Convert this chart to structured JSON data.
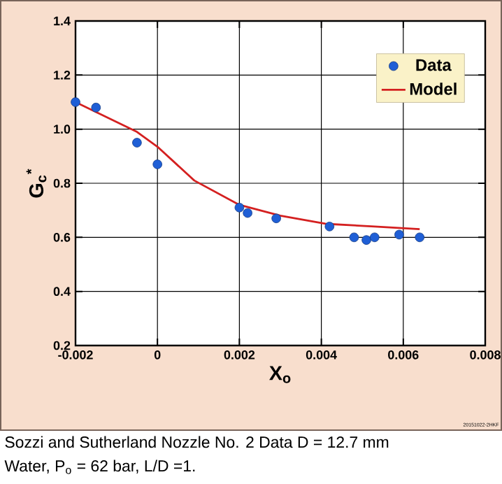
{
  "chart_data": {
    "type": "scatter",
    "xlabel": "X$_{o}$",
    "ylabel": "G$_{c}$$^{*}$",
    "xlim": [
      -0.002,
      0.008
    ],
    "ylim": [
      0.2,
      1.4
    ],
    "xticks": [
      -0.002,
      0,
      0.002,
      0.004,
      0.006,
      0.008
    ],
    "yticks": [
      0.2,
      0.4,
      0.6,
      0.8,
      {
        "value": 1.0,
        "label": "1.0"
      },
      1.2,
      1.4
    ],
    "grid": true,
    "legend": "top right",
    "series": [
      {
        "name": "Data",
        "marker": "circle",
        "color": "#1f5fd6",
        "x": [
          -0.002,
          -0.0015,
          -0.0005,
          0,
          0.002,
          0.0022,
          0.0029,
          0.0042,
          0.0048,
          0.0051,
          0.0053,
          0.0059,
          0.0064
        ],
        "values": [
          1.1,
          1.08,
          0.95,
          0.87,
          0.71,
          0.69,
          0.67,
          0.64,
          0.6,
          0.59,
          0.6,
          0.61,
          0.6
        ]
      },
      {
        "name": "Model",
        "type": "line",
        "marker": "none",
        "line_style": "solid",
        "color": "#d42020",
        "x": [
          -0.002,
          -0.0005,
          0,
          0.0009,
          0.002,
          0.003,
          0.0041,
          0.0053,
          0.0064
        ],
        "values": [
          1.1,
          0.99,
          0.935,
          0.81,
          0.72,
          0.68,
          0.65,
          0.64,
          0.63
        ]
      }
    ],
    "annotations": [
      "20151022-2HKF",
      "Sozzi and Sutherland Nozzle No. 2 Data  D = 12.7 mm",
      "Water, P$_{o}$ = 62 bar, L/D =1."
    ]
  }
}
